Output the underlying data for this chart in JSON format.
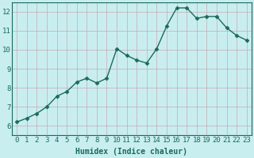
{
  "x": [
    0,
    1,
    2,
    3,
    4,
    5,
    6,
    7,
    8,
    9,
    10,
    11,
    12,
    13,
    14,
    15,
    16,
    17,
    18,
    19,
    20,
    21,
    22,
    23
  ],
  "y": [
    6.2,
    6.4,
    6.65,
    7.0,
    7.55,
    7.8,
    8.3,
    8.5,
    8.25,
    8.5,
    10.05,
    9.7,
    9.45,
    9.3,
    10.05,
    11.25,
    12.2,
    12.2,
    11.65,
    11.75,
    11.75,
    11.15,
    10.75,
    10.5
  ],
  "xlabel": "Humidex (Indice chaleur)",
  "xlim": [
    -0.5,
    23.5
  ],
  "ylim": [
    5.5,
    12.5
  ],
  "yticks": [
    6,
    7,
    8,
    9,
    10,
    11,
    12
  ],
  "xticks": [
    0,
    1,
    2,
    3,
    4,
    5,
    6,
    7,
    8,
    9,
    10,
    11,
    12,
    13,
    14,
    15,
    16,
    17,
    18,
    19,
    20,
    21,
    22,
    23
  ],
  "line_color": "#1a6b5a",
  "bg_color": "#c8eef0",
  "major_grid_color": "#c8a8b0",
  "minor_grid_color": "#d8e8e8",
  "marker": "D",
  "marker_size": 2.5,
  "line_width": 1.0,
  "xlabel_fontsize": 7,
  "tick_fontsize": 6.5,
  "tick_color": "#1a6b5a"
}
